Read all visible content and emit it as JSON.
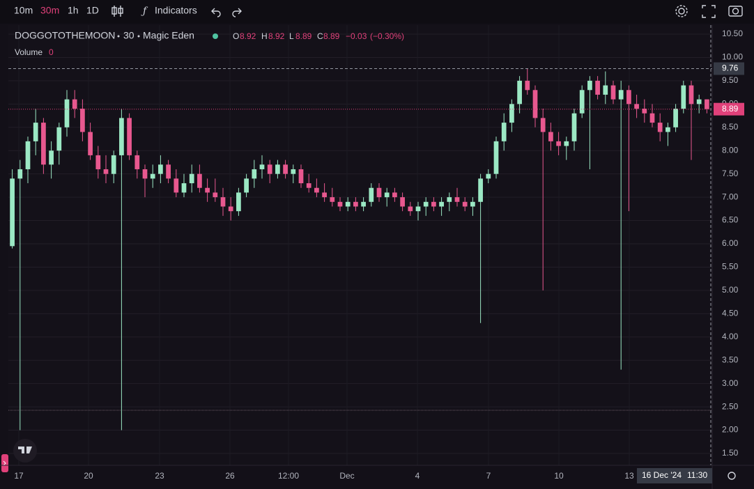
{
  "toolbar": {
    "intervals": [
      "10m",
      "30m",
      "1h",
      "1D"
    ],
    "active": "30m",
    "indicators": "Indicators"
  },
  "chart_data": {
    "type": "candlestick",
    "legend": {
      "symbol": "DOGGOTOTHEMOON",
      "interval": "30",
      "exchange": "Magic Eden",
      "open": 8.92,
      "high": 8.92,
      "low": 8.89,
      "close": 8.89,
      "change": {
        "value": -0.03,
        "label": "−0.03"
      },
      "change_pct": {
        "value": -0.3,
        "label": "(−0.30%)"
      },
      "volume_label": "Volume",
      "volume": 0
    },
    "up_color": "#9be8c4",
    "down_color": "#e8588f",
    "ylim": [
      1.3,
      10.7
    ],
    "yticks": [
      {
        "value": 1.5,
        "label": "1.50"
      },
      {
        "value": 2,
        "label": "2.00"
      },
      {
        "value": 2.5,
        "label": "2.50"
      },
      {
        "value": 3,
        "label": "3.00"
      },
      {
        "value": 3.5,
        "label": "3.50"
      },
      {
        "value": 4,
        "label": "4.00"
      },
      {
        "value": 4.5,
        "label": "4.50"
      },
      {
        "value": 5,
        "label": "5.00"
      },
      {
        "value": 5.5,
        "label": "5.50"
      },
      {
        "value": 6,
        "label": "6.00"
      },
      {
        "value": 6.5,
        "label": "6.50"
      },
      {
        "value": 7,
        "label": "7.00"
      },
      {
        "value": 7.5,
        "label": "7.50"
      },
      {
        "value": 8,
        "label": "8.00"
      },
      {
        "value": 8.5,
        "label": "8.50"
      },
      {
        "value": 9,
        "label": "9.00"
      },
      {
        "value": 9.5,
        "label": "9.50"
      },
      {
        "value": 10,
        "label": "10.00"
      },
      {
        "value": 10.5,
        "label": "10.50"
      }
    ],
    "xlabels": [
      "17",
      "20",
      "23",
      "26",
      "12:00",
      "Dec",
      "4",
      "7",
      "10",
      "13"
    ],
    "crosshair_price": 9.76,
    "crosshair_date": "16 Dec '24",
    "crosshair_time": "11:30",
    "last_price": 8.89,
    "candles": [
      [
        5.95,
        7.6,
        5.9,
        7.4
      ],
      [
        7.4,
        7.8,
        2.0,
        7.6
      ],
      [
        7.6,
        8.3,
        7.3,
        8.2
      ],
      [
        8.2,
        8.9,
        7.9,
        8.6
      ],
      [
        8.6,
        8.7,
        7.5,
        7.7
      ],
      [
        7.7,
        8.2,
        7.4,
        8.0
      ],
      [
        8.0,
        8.6,
        7.7,
        8.5
      ],
      [
        8.5,
        9.3,
        8.3,
        9.1
      ],
      [
        9.1,
        9.3,
        8.7,
        8.9
      ],
      [
        8.9,
        9.1,
        8.2,
        8.4
      ],
      [
        8.4,
        8.6,
        7.8,
        7.9
      ],
      [
        7.9,
        8.1,
        7.4,
        7.6
      ],
      [
        7.6,
        7.9,
        7.3,
        7.5
      ],
      [
        7.5,
        8.0,
        7.3,
        7.9
      ],
      [
        7.9,
        8.9,
        2.0,
        8.7
      ],
      [
        8.7,
        8.8,
        7.8,
        7.9
      ],
      [
        7.9,
        8.0,
        7.4,
        7.6
      ],
      [
        7.6,
        7.7,
        7.0,
        7.4
      ],
      [
        7.4,
        7.7,
        7.2,
        7.5
      ],
      [
        7.5,
        7.9,
        7.3,
        7.7
      ],
      [
        7.7,
        7.8,
        7.3,
        7.4
      ],
      [
        7.4,
        7.6,
        7.0,
        7.1
      ],
      [
        7.1,
        7.5,
        7.0,
        7.3
      ],
      [
        7.3,
        7.7,
        7.1,
        7.5
      ],
      [
        7.5,
        7.7,
        7.1,
        7.2
      ],
      [
        7.2,
        7.4,
        6.9,
        7.1
      ],
      [
        7.1,
        7.4,
        6.9,
        7.0
      ],
      [
        7.0,
        7.2,
        6.6,
        6.8
      ],
      [
        6.8,
        7.0,
        6.5,
        6.7
      ],
      [
        6.7,
        7.2,
        6.6,
        7.1
      ],
      [
        7.1,
        7.5,
        7.0,
        7.4
      ],
      [
        7.4,
        7.8,
        7.2,
        7.6
      ],
      [
        7.6,
        7.9,
        7.4,
        7.7
      ],
      [
        7.7,
        7.8,
        7.3,
        7.5
      ],
      [
        7.5,
        7.8,
        7.4,
        7.7
      ],
      [
        7.7,
        7.8,
        7.4,
        7.5
      ],
      [
        7.5,
        7.7,
        7.3,
        7.6
      ],
      [
        7.6,
        7.7,
        7.2,
        7.3
      ],
      [
        7.3,
        7.5,
        7.1,
        7.2
      ],
      [
        7.2,
        7.4,
        7.0,
        7.1
      ],
      [
        7.1,
        7.3,
        6.9,
        7.0
      ],
      [
        7.0,
        7.2,
        6.8,
        6.9
      ],
      [
        6.9,
        7.0,
        6.7,
        6.8
      ],
      [
        6.8,
        7.0,
        6.7,
        6.9
      ],
      [
        6.9,
        7.0,
        6.7,
        6.8
      ],
      [
        6.8,
        7.0,
        6.7,
        6.9
      ],
      [
        6.9,
        7.3,
        6.8,
        7.2
      ],
      [
        7.2,
        7.3,
        6.9,
        7.0
      ],
      [
        7.0,
        7.2,
        6.8,
        7.1
      ],
      [
        7.1,
        7.2,
        6.9,
        7.0
      ],
      [
        7.0,
        7.1,
        6.7,
        6.8
      ],
      [
        6.8,
        6.9,
        6.6,
        6.7
      ],
      [
        6.7,
        6.9,
        6.5,
        6.8
      ],
      [
        6.8,
        7.0,
        6.6,
        6.9
      ],
      [
        6.9,
        7.0,
        6.7,
        6.8
      ],
      [
        6.8,
        7.0,
        6.6,
        6.9
      ],
      [
        6.9,
        7.1,
        6.7,
        7.0
      ],
      [
        7.0,
        7.2,
        6.8,
        6.9
      ],
      [
        6.9,
        7.0,
        6.7,
        6.8
      ],
      [
        6.8,
        7.0,
        6.6,
        6.9
      ],
      [
        6.9,
        7.5,
        4.3,
        7.4
      ],
      [
        7.4,
        7.6,
        7.3,
        7.5
      ],
      [
        7.5,
        8.3,
        7.4,
        8.2
      ],
      [
        8.2,
        8.8,
        8.0,
        8.6
      ],
      [
        8.6,
        9.1,
        8.4,
        9.0
      ],
      [
        9.0,
        9.6,
        8.8,
        9.5
      ],
      [
        9.5,
        9.76,
        9.2,
        9.3
      ],
      [
        9.3,
        9.4,
        8.5,
        8.7
      ],
      [
        8.7,
        8.9,
        5.0,
        8.4
      ],
      [
        8.4,
        8.6,
        8.0,
        8.2
      ],
      [
        8.2,
        8.4,
        7.9,
        8.1
      ],
      [
        8.1,
        8.3,
        7.8,
        8.2
      ],
      [
        8.2,
        8.9,
        8.0,
        8.8
      ],
      [
        8.8,
        9.4,
        8.7,
        9.3
      ],
      [
        9.3,
        9.6,
        7.6,
        9.5
      ],
      [
        9.5,
        9.6,
        9.1,
        9.2
      ],
      [
        9.2,
        9.7,
        9.0,
        9.4
      ],
      [
        9.4,
        9.5,
        9.0,
        9.1
      ],
      [
        9.1,
        9.5,
        3.3,
        9.3
      ],
      [
        9.3,
        9.4,
        6.7,
        9.0
      ],
      [
        9.0,
        9.2,
        8.7,
        8.9
      ],
      [
        8.9,
        9.1,
        8.6,
        8.8
      ],
      [
        8.8,
        9.0,
        8.5,
        8.6
      ],
      [
        8.6,
        8.8,
        8.2,
        8.4
      ],
      [
        8.4,
        8.6,
        8.1,
        8.5
      ],
      [
        8.5,
        9.0,
        8.4,
        8.9
      ],
      [
        8.9,
        9.5,
        8.8,
        9.4
      ],
      [
        9.4,
        9.5,
        7.8,
        9.0
      ],
      [
        9.0,
        9.2,
        8.8,
        9.1
      ],
      [
        9.1,
        9.1,
        8.8,
        8.89
      ]
    ]
  }
}
